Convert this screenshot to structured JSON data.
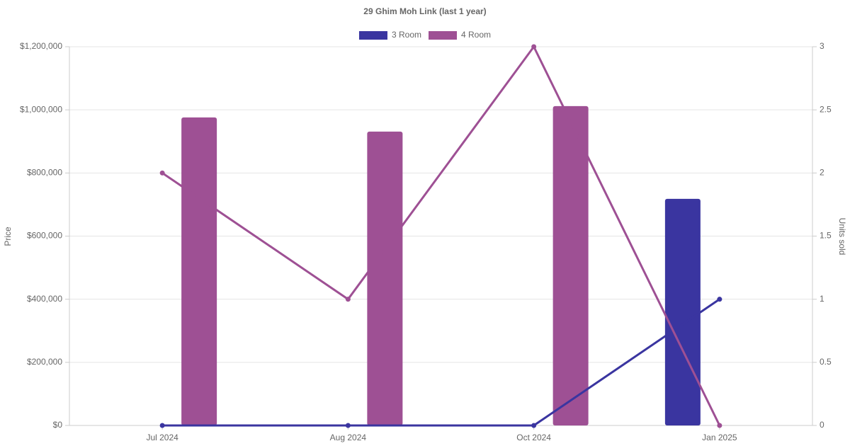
{
  "chart_data": {
    "type": "bar",
    "title": "29 Ghim Moh Link (last 1 year)",
    "y_label": "Price",
    "y2_label": "Units sold",
    "categories": [
      "Jul 2024",
      "Aug 2024",
      "Oct 2024",
      "Jan 2025"
    ],
    "series": [
      {
        "name": "3 Room",
        "color": "#3a35a0",
        "values": [
          null,
          null,
          null,
          718000
        ],
        "units": [
          0,
          0,
          0,
          1
        ]
      },
      {
        "name": "4 Room",
        "color": "#9e5094",
        "values": [
          976000,
          931000,
          1012000,
          null
        ],
        "units": [
          2,
          1,
          3,
          0
        ]
      }
    ],
    "ylim": [
      0,
      1200000
    ],
    "yticks": [
      {
        "value": 0,
        "label": "$0"
      },
      {
        "value": 200000,
        "label": "$200,000"
      },
      {
        "value": 400000,
        "label": "$400,000"
      },
      {
        "value": 600000,
        "label": "$600,000"
      },
      {
        "value": 800000,
        "label": "$800,000"
      },
      {
        "value": 1000000,
        "label": "$1,000,000"
      },
      {
        "value": 1200000,
        "label": "$1,200,000"
      }
    ],
    "y2lim": [
      0,
      3
    ],
    "y2ticks": [
      0,
      0.5,
      1,
      1.5,
      2,
      2.5,
      3
    ],
    "grid": true
  }
}
